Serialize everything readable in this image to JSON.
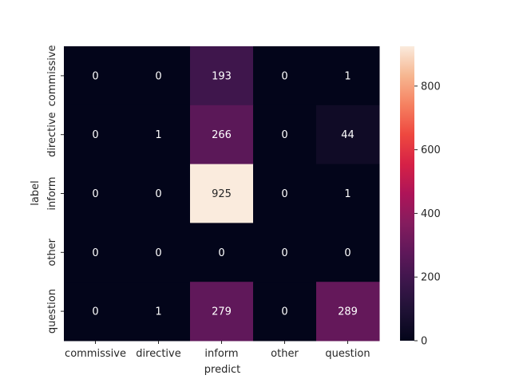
{
  "chart_data": {
    "type": "heatmap",
    "title": "",
    "xlabel": "predict",
    "ylabel": "label",
    "x_categories": [
      "commissive",
      "directive",
      "inform",
      "other",
      "question"
    ],
    "y_categories": [
      "commissive",
      "directive",
      "inform",
      "other",
      "question"
    ],
    "values": [
      [
        0,
        0,
        193,
        0,
        1
      ],
      [
        0,
        1,
        266,
        0,
        44
      ],
      [
        0,
        0,
        925,
        0,
        1
      ],
      [
        0,
        0,
        0,
        0,
        0
      ],
      [
        0,
        1,
        279,
        0,
        289
      ]
    ],
    "colorbar": {
      "min": 0,
      "max": 925,
      "ticks": [
        0,
        200,
        400,
        600,
        800
      ],
      "colormap": "rocket"
    },
    "annotation_dark_color": "#262626",
    "annotation_light_color": "#ffffff"
  }
}
